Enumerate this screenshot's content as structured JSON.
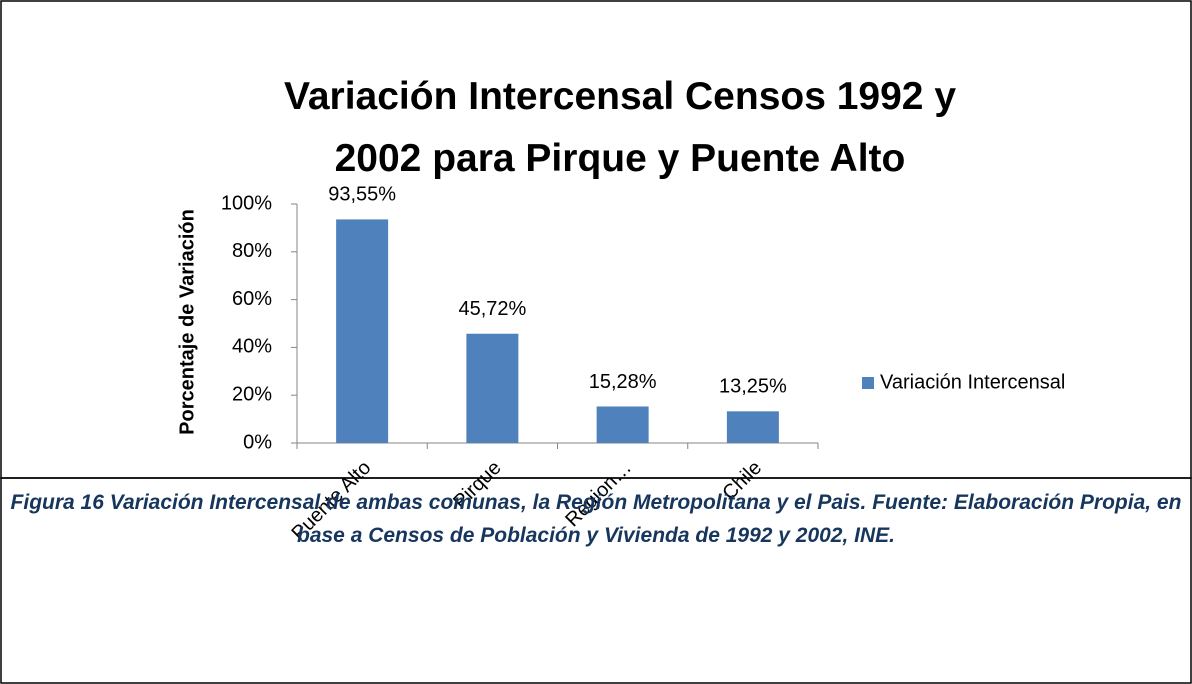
{
  "chart_data": {
    "type": "bar",
    "title": "Variación Intercensal Censos 1992 y 2002 para Pirque y Puente Alto",
    "y_label": "Porcentaje de Variación",
    "categories": [
      "Puente Alto",
      "Pirque",
      "Region…",
      "Chile"
    ],
    "series": [
      {
        "name": "Variación Intercensal",
        "color": "#4f81bd",
        "values": [
          93.55,
          45.72,
          15.28,
          13.25
        ],
        "value_labels": [
          "93,55%",
          "45,72%",
          "15,28%",
          "13,25%"
        ]
      }
    ],
    "ylim": [
      0,
      100
    ],
    "yticks": [
      {
        "value": 0,
        "label": "0%"
      },
      {
        "value": 20,
        "label": "20%"
      },
      {
        "value": 40,
        "label": "40%"
      },
      {
        "value": 60,
        "label": "60%"
      },
      {
        "value": 80,
        "label": "80%"
      },
      {
        "value": 100,
        "label": "100%"
      }
    ],
    "grid": false,
    "legend": "right"
  },
  "caption": "Figura 16 Variación Intercensal de ambas comunas, la Región Metropolitana y el Pais. Fuente: Elaboración Propia, en base a Censos de Población y Vivienda de 1992 y 2002, INE."
}
